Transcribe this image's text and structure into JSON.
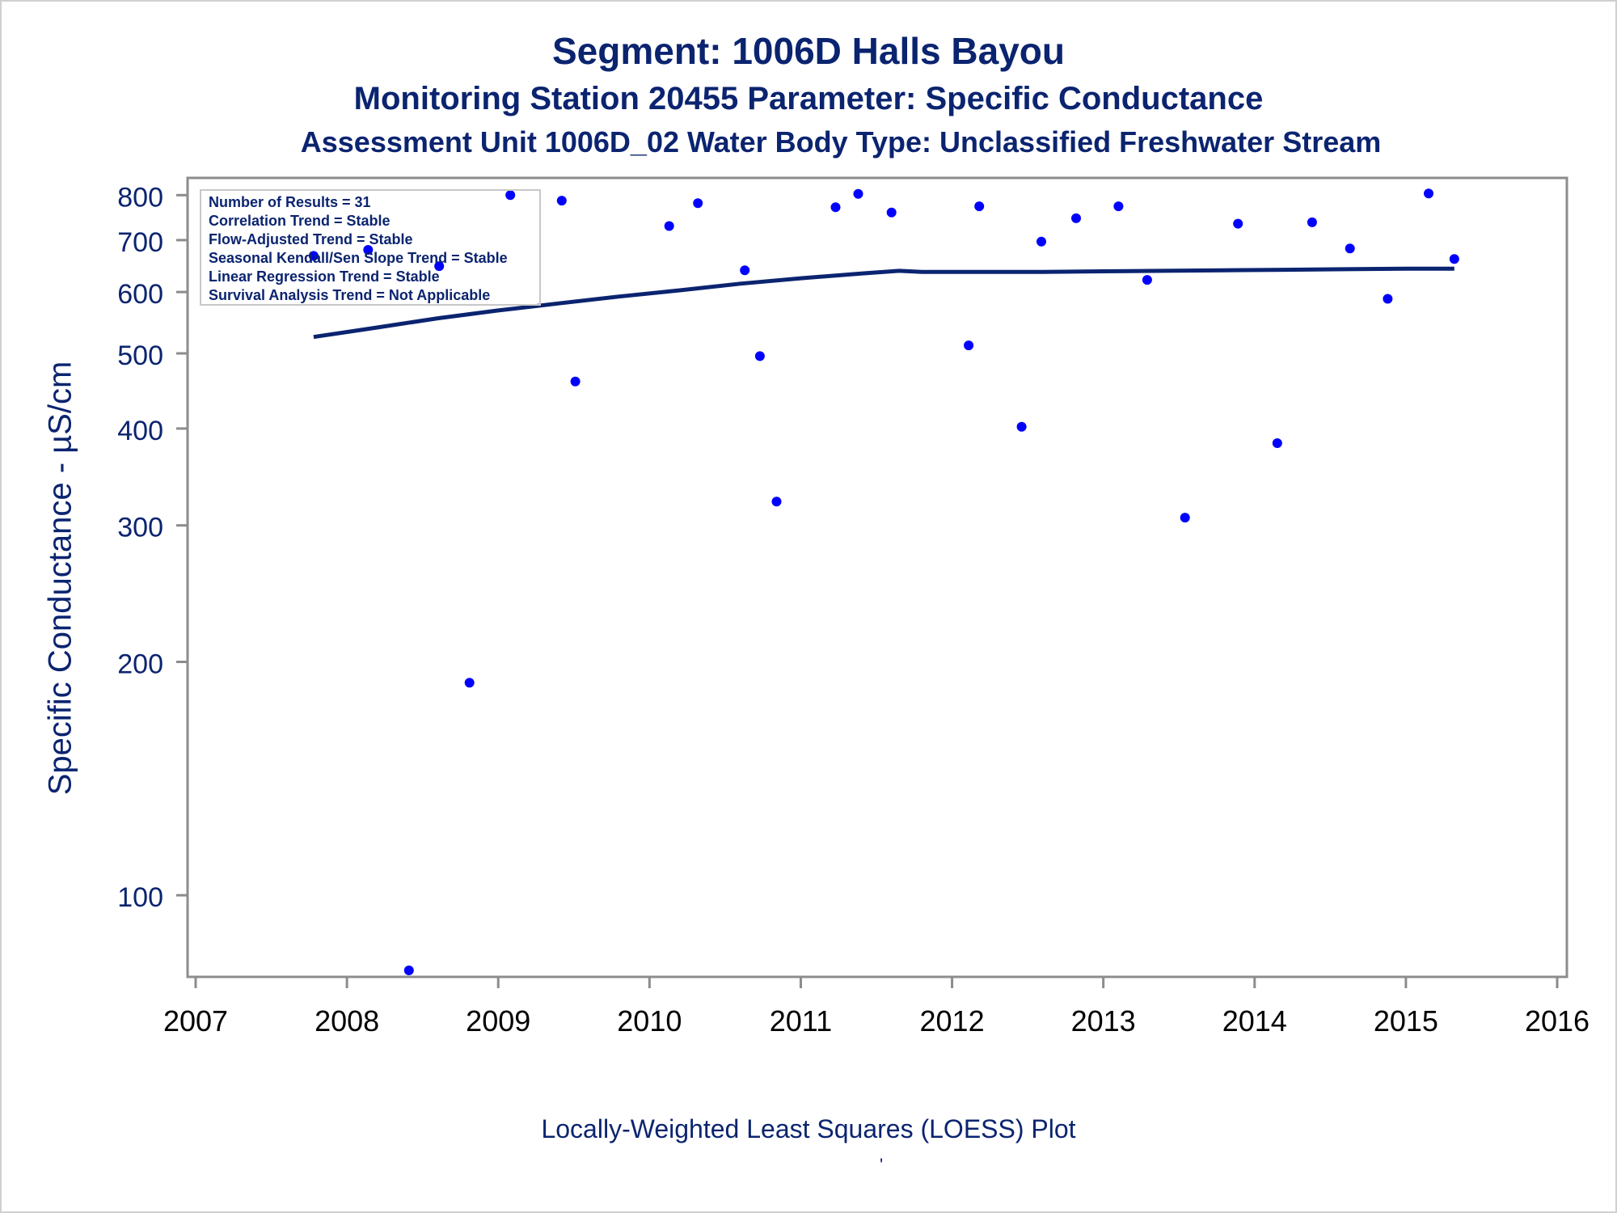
{
  "titles": {
    "line1": "Segment: 1006D  Halls Bayou",
    "line2": "Monitoring Station 20455 Parameter: Specific Conductance",
    "line3": "Assessment Unit 1006D_02   Water Body Type: Unclassified Freshwater Stream"
  },
  "footnote": "Locally-Weighted Least Squares (LOESS) Plot",
  "footnote_mark": "'",
  "colors": {
    "text": "#0b2470",
    "points": "#0000ff",
    "line": "#0b2470",
    "axis": "#8c8c8c"
  },
  "stats_box": {
    "lines": [
      "Number of Results = 31",
      "Correlation Trend = Stable",
      "Flow-Adjusted Trend = Stable",
      "Seasonal Kendall/Sen Slope Trend = Stable",
      "Linear Regression Trend = Stable",
      "Survival Analysis Trend = Not Applicable"
    ]
  },
  "chart_data": {
    "type": "scatter",
    "ylabel": "Specific Conductance -  µS/cm",
    "xlabel": "",
    "y_scale": "log",
    "xlim": [
      2007,
      2016
    ],
    "ylim": [
      80,
      830
    ],
    "x_ticks": [
      2007,
      2008,
      2009,
      2010,
      2011,
      2012,
      2013,
      2014,
      2015,
      2016
    ],
    "y_ticks": [
      100,
      200,
      300,
      400,
      500,
      600,
      700,
      800
    ],
    "grid": false,
    "series": [
      {
        "kind": "points",
        "x": [
          2007.78,
          2008.14,
          2008.41,
          2008.61,
          2008.81,
          2009.08,
          2009.42,
          2009.51,
          2010.13,
          2010.32,
          2010.63,
          2010.73,
          2010.84,
          2011.23,
          2011.38,
          2011.6,
          2012.11,
          2012.18,
          2012.46,
          2012.59,
          2012.82,
          2013.1,
          2013.29,
          2013.54,
          2013.89,
          2014.15,
          2014.38,
          2014.63,
          2014.88,
          2015.15,
          2015.32
        ],
        "y": [
          668,
          680,
          80,
          648,
          188,
          800,
          787,
          460,
          730,
          781,
          640,
          496,
          322,
          772,
          803,
          760,
          512,
          774,
          402,
          697,
          747,
          774,
          622,
          307,
          735,
          383,
          738,
          683,
          588,
          804,
          662
        ]
      },
      {
        "kind": "line",
        "x": [
          2007.78,
          2008.2,
          2008.6,
          2009.0,
          2009.4,
          2009.8,
          2010.2,
          2010.6,
          2011.0,
          2011.4,
          2011.65,
          2011.8,
          2012.2,
          2012.6,
          2013.0,
          2013.4,
          2013.8,
          2014.2,
          2014.6,
          2015.0,
          2015.32
        ],
        "y": [
          525,
          540,
          555,
          568,
          580,
          592,
          603,
          615,
          625,
          634,
          639,
          637,
          637,
          637,
          638,
          639,
          640,
          641,
          642,
          643,
          643
        ]
      }
    ]
  }
}
